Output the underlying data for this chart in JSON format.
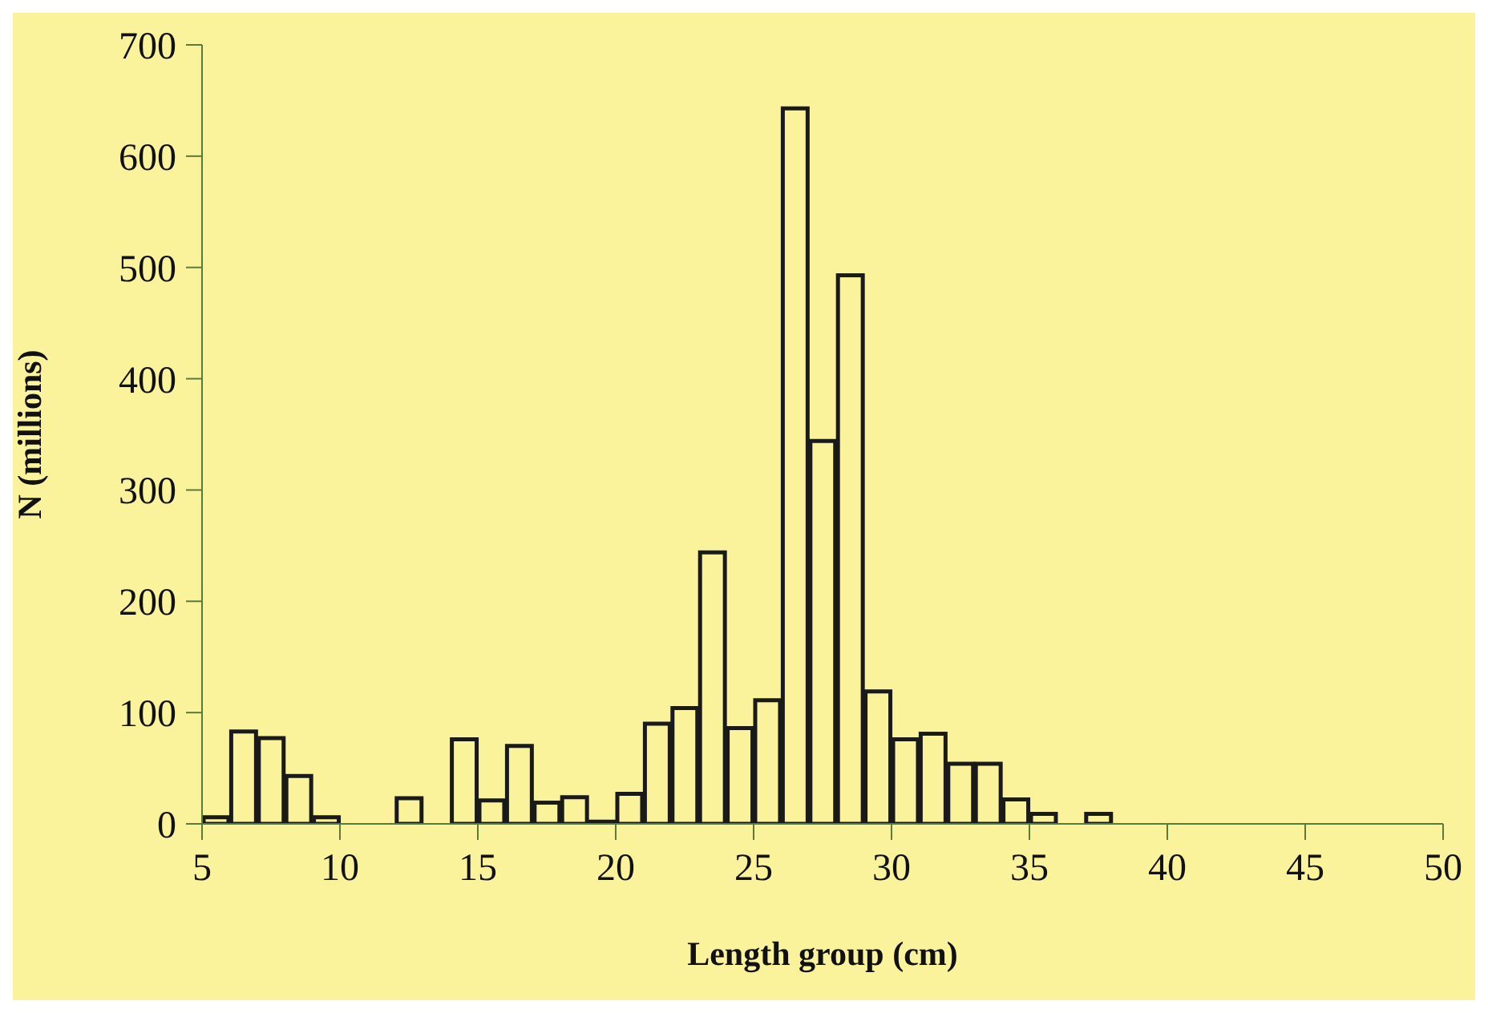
{
  "chart_data": {
    "type": "histogram",
    "xlabel": "Length group (cm)",
    "ylabel": "N (millions)",
    "bins": [
      5,
      6,
      7,
      8,
      9,
      10,
      11,
      12,
      13,
      14,
      15,
      16,
      17,
      18,
      19,
      20,
      21,
      22,
      23,
      24,
      25,
      26,
      27,
      28,
      29,
      30,
      31,
      32,
      33,
      34,
      35,
      36,
      37,
      38
    ],
    "values": [
      6,
      83,
      77,
      43,
      6,
      0,
      0,
      23,
      0,
      76,
      21,
      70,
      19,
      24,
      2,
      27,
      90,
      104,
      244,
      86,
      111,
      643,
      344,
      493,
      119,
      76,
      81,
      54,
      54,
      22,
      9,
      0,
      9
    ],
    "color": "#1a1a1a",
    "xlim": [
      5,
      50
    ],
    "xticks": [
      5,
      10,
      15,
      20,
      25,
      30,
      35,
      40,
      45,
      50
    ],
    "ylim": [
      0,
      700
    ],
    "yticks": [
      0,
      100,
      200,
      300,
      400,
      500,
      600,
      700
    ]
  }
}
